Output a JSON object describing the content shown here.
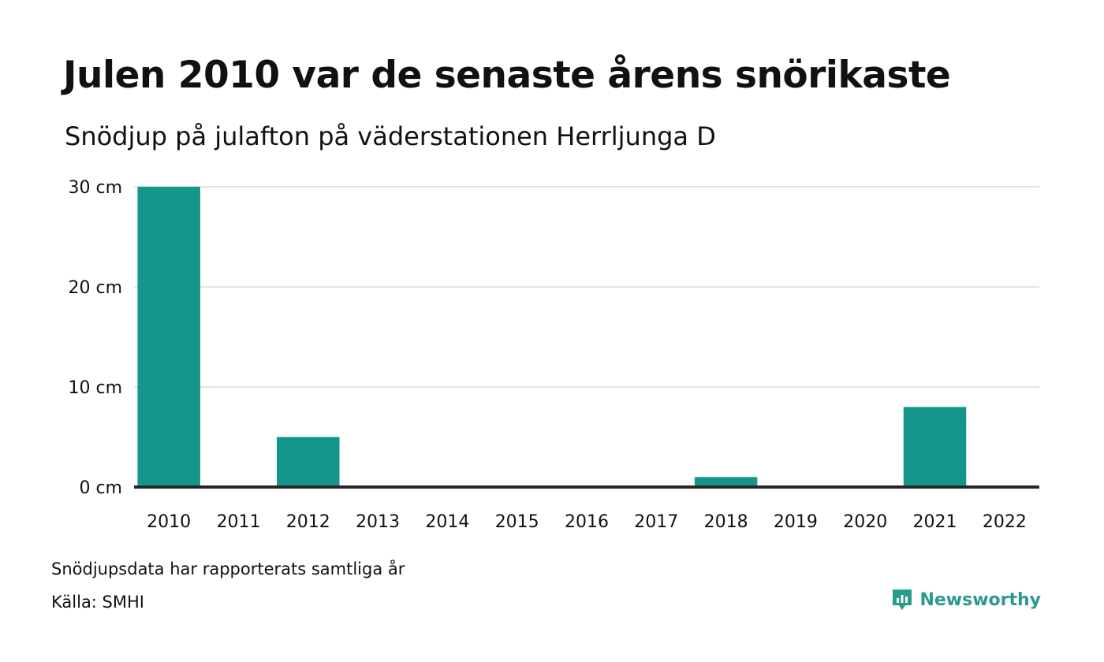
{
  "header": {
    "title": "Julen 2010 var de senaste årens snörikaste",
    "subtitle": "Snödjup på julafton på väderstationen Herrljunga D"
  },
  "footer": {
    "note": "Snödjupsdata har rapporterats samtliga år",
    "source": "Källa: SMHI",
    "brand": "Newsworthy",
    "brand_icon": "newsworthy-logo-icon"
  },
  "colors": {
    "bar": "#14968a",
    "grid": "#e3e3e3",
    "baseline": "#262626",
    "brand": "#2a9a8c"
  },
  "chart_data": {
    "type": "bar",
    "title": "Julen 2010 var de senaste årens snörikaste",
    "subtitle": "Snödjup på julafton på väderstationen Herrljunga D",
    "categories": [
      "2010",
      "2011",
      "2012",
      "2013",
      "2014",
      "2015",
      "2016",
      "2017",
      "2018",
      "2019",
      "2020",
      "2021",
      "2022"
    ],
    "values": [
      30,
      0,
      5,
      0,
      0,
      0,
      0,
      0,
      1,
      0,
      0,
      8,
      0
    ],
    "unit": "cm",
    "yticks": [
      0,
      10,
      20,
      30
    ],
    "ytick_labels": [
      "0 cm",
      "10 cm",
      "20 cm",
      "30 cm"
    ],
    "ylim": [
      0,
      30
    ],
    "grid": true,
    "legend": "none"
  }
}
